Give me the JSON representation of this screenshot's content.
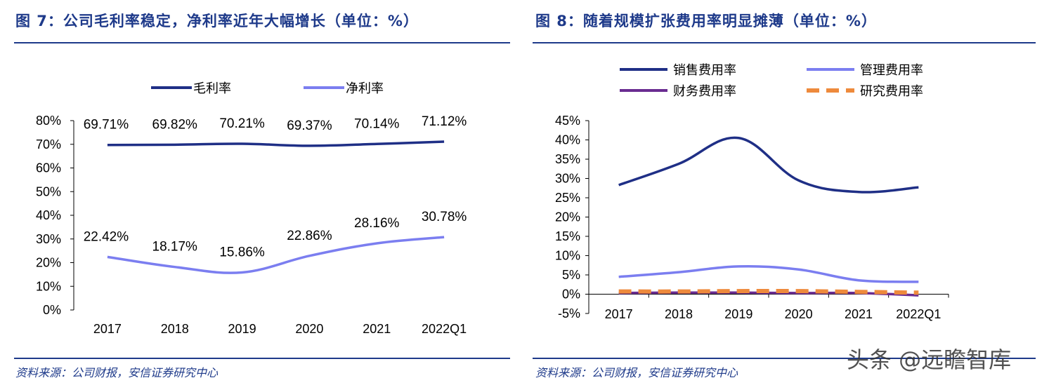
{
  "left": {
    "title": "图 7：公司毛利率稳定，净利率近年大幅增长（单位：%）",
    "source": "资料来源：公司财报，安信证券研究中心"
  },
  "right": {
    "title": "图 8：随着规模扩张费用率明显摊薄（单位：%）",
    "source": "资料来源：公司财报，安信证券研究中心"
  },
  "watermark": "头条 @远瞻智库",
  "colors": {
    "title": "#1e3a8a",
    "dark_blue": "#1f2f86",
    "light_blue": "#7b7ef0",
    "purple": "#6a2c91",
    "orange": "#ee8a3c"
  },
  "chart_data": [
    {
      "type": "line",
      "categories": [
        "2017",
        "2018",
        "2019",
        "2020",
        "2021",
        "2022Q1"
      ],
      "y_ticks": [
        "0%",
        "10%",
        "20%",
        "30%",
        "40%",
        "50%",
        "60%",
        "70%",
        "80%"
      ],
      "ylim": [
        0,
        80
      ],
      "legend_position": "top",
      "series": [
        {
          "name": "毛利率",
          "color": "#1f2f86",
          "values": [
            69.71,
            69.82,
            70.21,
            69.37,
            70.14,
            71.12
          ],
          "labels": [
            "69.71%",
            "69.82%",
            "70.21%",
            "69.37%",
            "70.14%",
            "71.12%"
          ]
        },
        {
          "name": "净利率",
          "color": "#7b7ef0",
          "values": [
            22.42,
            18.17,
            15.86,
            22.86,
            28.16,
            30.78
          ],
          "labels": [
            "22.42%",
            "18.17%",
            "15.86%",
            "22.86%",
            "28.16%",
            "30.78%"
          ]
        }
      ]
    },
    {
      "type": "line",
      "categories": [
        "2017",
        "2018",
        "2019",
        "2020",
        "2021",
        "2022Q1"
      ],
      "y_ticks": [
        "-5%",
        "0%",
        "5%",
        "10%",
        "15%",
        "20%",
        "25%",
        "30%",
        "35%",
        "40%",
        "45%"
      ],
      "ylim": [
        -5,
        45
      ],
      "legend_position": "top",
      "series": [
        {
          "name": "销售费用率",
          "color": "#1f2f86",
          "dash": false,
          "values": [
            28.3,
            33.8,
            40.5,
            29.5,
            26.5,
            27.7
          ]
        },
        {
          "name": "管理费用率",
          "color": "#7b7ef0",
          "dash": false,
          "values": [
            4.5,
            5.7,
            7.2,
            6.4,
            3.6,
            3.2
          ]
        },
        {
          "name": "财务费用率",
          "color": "#6a2c91",
          "dash": false,
          "values": [
            0.3,
            0.4,
            0.4,
            0.3,
            0.3,
            -0.3
          ]
        },
        {
          "name": "研究费用率",
          "color": "#ee8a3c",
          "dash": true,
          "values": [
            0.7,
            0.7,
            0.8,
            0.8,
            0.6,
            0.4
          ]
        }
      ]
    }
  ]
}
